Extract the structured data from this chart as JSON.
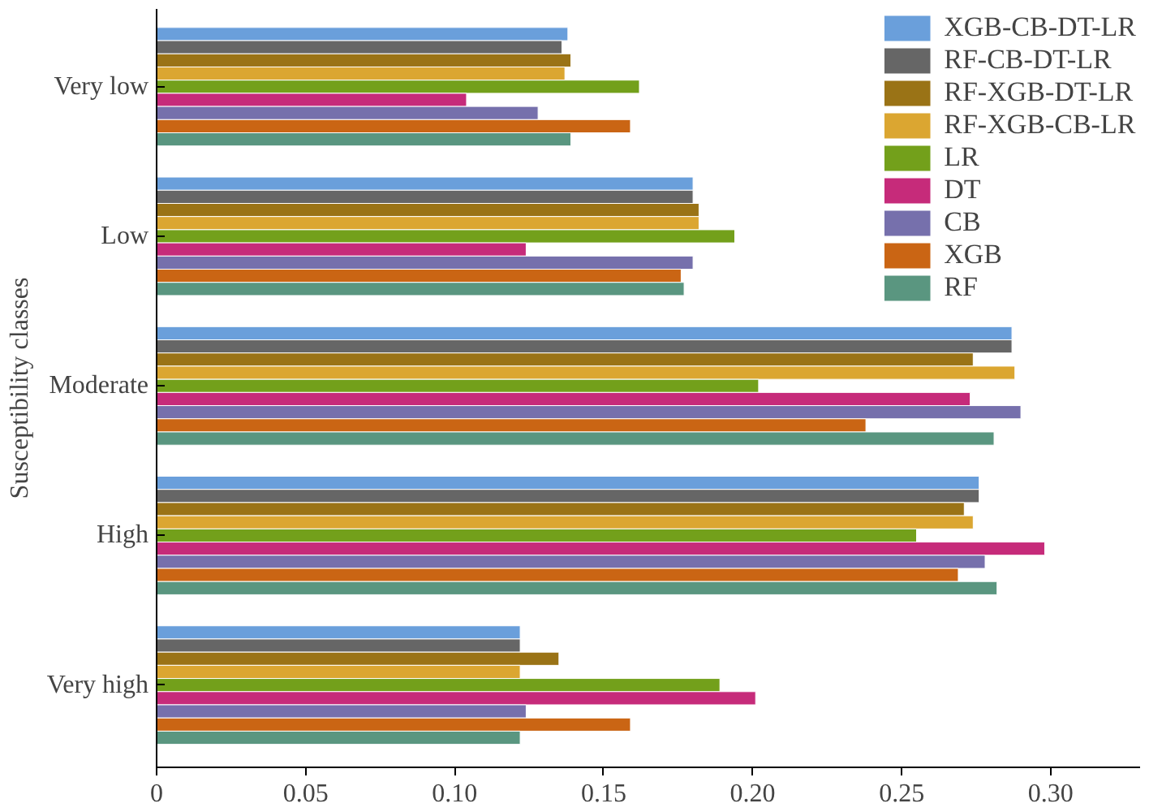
{
  "chart_data": {
    "type": "bar",
    "orientation": "horizontal",
    "ylabel": "Susceptibility classes",
    "categories": [
      "Very low",
      "Low",
      "Moderate",
      "High",
      "Very high"
    ],
    "series": [
      {
        "name": "XGB-CB-DT-LR",
        "color": "#6a9fdb",
        "values": [
          0.138,
          0.18,
          0.287,
          0.276,
          0.122
        ]
      },
      {
        "name": "RF-CB-DT-LR",
        "color": "#666666",
        "values": [
          0.136,
          0.18,
          0.287,
          0.276,
          0.122
        ]
      },
      {
        "name": "RF-XGB-DT-LR",
        "color": "#9a7316",
        "values": [
          0.139,
          0.182,
          0.274,
          0.271,
          0.135
        ]
      },
      {
        "name": "RF-XGB-CB-LR",
        "color": "#dba631",
        "values": [
          0.137,
          0.182,
          0.288,
          0.274,
          0.122
        ]
      },
      {
        "name": "LR",
        "color": "#73a01b",
        "values": [
          0.162,
          0.194,
          0.202,
          0.255,
          0.189
        ]
      },
      {
        "name": "DT",
        "color": "#c62b7a",
        "values": [
          0.104,
          0.124,
          0.273,
          0.298,
          0.201
        ]
      },
      {
        "name": "CB",
        "color": "#7670ac",
        "values": [
          0.128,
          0.18,
          0.29,
          0.278,
          0.124
        ]
      },
      {
        "name": "XGB",
        "color": "#ca6514",
        "values": [
          0.159,
          0.176,
          0.238,
          0.269,
          0.159
        ]
      },
      {
        "name": "RF",
        "color": "#5a9680",
        "values": [
          0.139,
          0.177,
          0.281,
          0.282,
          0.122
        ]
      }
    ],
    "xlim": [
      0,
      0.33
    ],
    "xticks": [
      0,
      0.05,
      {
        "value": 0.1,
        "label": "0.10"
      },
      0.15,
      {
        "value": 0.2,
        "label": "0.20"
      },
      0.25,
      {
        "value": 0.3,
        "label": "0.30"
      }
    ],
    "grid": false,
    "legend": "top right"
  }
}
